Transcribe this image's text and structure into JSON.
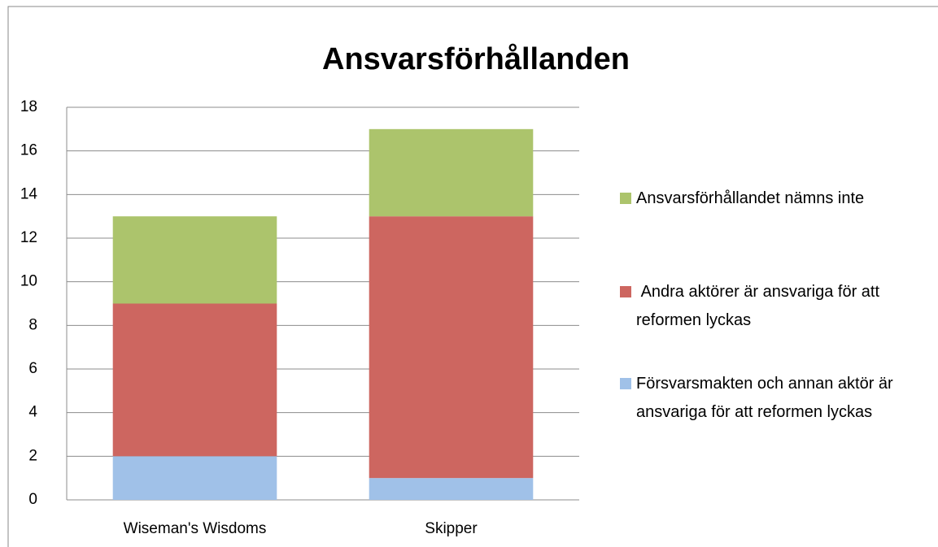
{
  "chart_data": {
    "type": "stacked_bar",
    "title": "Ansvarsförhållanden",
    "categories": [
      "Wiseman's Wisdoms",
      "Skipper"
    ],
    "series": [
      {
        "name": "Försvarsmakten och annan aktör är ansvariga för att reformen lyckas",
        "color": "#a0c1e8",
        "values": [
          2,
          1
        ]
      },
      {
        "name": " Andra aktörer är ansvariga för att reformen lyckas",
        "color": "#cd6660",
        "values": [
          7,
          12
        ]
      },
      {
        "name": "Ansvarsförhållandet nämns inte",
        "color": "#acc46c",
        "values": [
          4,
          4
        ]
      }
    ],
    "ylim": [
      0,
      18
    ],
    "yticks": [
      0,
      2,
      4,
      6,
      8,
      10,
      12,
      14,
      16,
      18
    ],
    "grid": true,
    "legend": "right"
  }
}
